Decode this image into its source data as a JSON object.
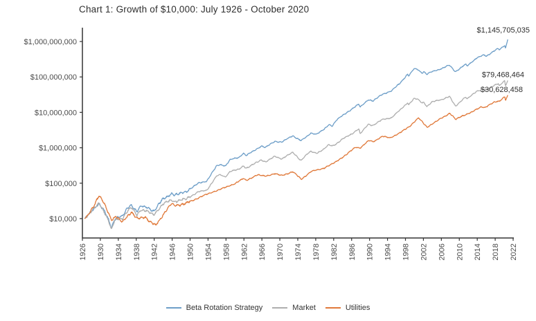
{
  "title": "Chart 1: Growth of $10,000: July 1926 - October 2020",
  "axes": {
    "x_ticks": [
      1926,
      1930,
      1934,
      1938,
      1942,
      1946,
      1950,
      1954,
      1958,
      1962,
      1966,
      1970,
      1974,
      1978,
      1982,
      1986,
      1990,
      1994,
      1998,
      2002,
      2006,
      2010,
      2014,
      2018,
      2022
    ],
    "y_tick_labels": [
      "$10,000",
      "$100,000",
      "$1,000,000",
      "$10,000,000",
      "$100,000,000",
      "$1,000,000,000"
    ],
    "y_tick_values": [
      10000,
      100000,
      1000000,
      10000000,
      100000000,
      1000000000
    ]
  },
  "chart_data": {
    "type": "line",
    "title": "Chart 1: Growth of $10,000: July 1926 - October 2020",
    "x_range": [
      1926,
      2022
    ],
    "y_scale": "log",
    "ylim": [
      3500,
      2500000000
    ],
    "grid": false,
    "legend_position": "bottom",
    "start_value": 10000,
    "start_date": "July 1926",
    "end_date": "October 2020",
    "series": [
      {
        "name": "Beta Rotation Strategy",
        "color": "#6d9ec8",
        "final_value": 1145705035,
        "final_label": "$1,145,705,035",
        "points": [
          [
            1926.5,
            10000
          ],
          [
            1927.5,
            13500
          ],
          [
            1928.9,
            21000
          ],
          [
            1929.7,
            28000
          ],
          [
            1930.9,
            16000
          ],
          [
            1931.9,
            8600
          ],
          [
            1932.45,
            5500
          ],
          [
            1933.2,
            9500
          ],
          [
            1933.9,
            11500
          ],
          [
            1934.9,
            11500
          ],
          [
            1935.9,
            18000
          ],
          [
            1936.9,
            25000
          ],
          [
            1938.2,
            16000
          ],
          [
            1938.9,
            22000
          ],
          [
            1940.4,
            21000
          ],
          [
            1941.9,
            16500
          ],
          [
            1943.9,
            35000
          ],
          [
            1945.9,
            51000
          ],
          [
            1946.6,
            46000
          ],
          [
            1948.9,
            56000
          ],
          [
            1949.9,
            68000
          ],
          [
            1951.9,
            100000
          ],
          [
            1953.7,
            115000
          ],
          [
            1955.9,
            305000
          ],
          [
            1956.7,
            335000
          ],
          [
            1957.9,
            310000
          ],
          [
            1958.9,
            455000
          ],
          [
            1960.9,
            540000
          ],
          [
            1961.9,
            700000
          ],
          [
            1962.5,
            600000
          ],
          [
            1965.9,
            1130000
          ],
          [
            1966.8,
            1020000
          ],
          [
            1968.9,
            1520000
          ],
          [
            1970.4,
            1450000
          ],
          [
            1972.9,
            2200000
          ],
          [
            1974.7,
            1600000
          ],
          [
            1975.9,
            2000000
          ],
          [
            1976.9,
            2600000
          ],
          [
            1978.2,
            2450000
          ],
          [
            1979.9,
            3300000
          ],
          [
            1980.9,
            4500000
          ],
          [
            1981.7,
            4200000
          ],
          [
            1982.6,
            6000000
          ],
          [
            1983.9,
            8000000
          ],
          [
            1985.9,
            12000000
          ],
          [
            1987.6,
            17000000
          ],
          [
            1987.9,
            14000000
          ],
          [
            1989.7,
            23000000
          ],
          [
            1990.8,
            21000000
          ],
          [
            1992.9,
            33000000
          ],
          [
            1994.9,
            40000000
          ],
          [
            1996.9,
            70000000
          ],
          [
            1998.5,
            120000000
          ],
          [
            1998.7,
            105000000
          ],
          [
            1999.9,
            170000000
          ],
          [
            2000.7,
            165000000
          ],
          [
            2001.7,
            130000000
          ],
          [
            2002.1,
            140000000
          ],
          [
            2002.75,
            118000000
          ],
          [
            2003.9,
            140000000
          ],
          [
            2005.9,
            170000000
          ],
          [
            2007.8,
            215000000
          ],
          [
            2008.9,
            150000000
          ],
          [
            2009.2,
            142000000
          ],
          [
            2010.9,
            205000000
          ],
          [
            2011.4,
            225000000
          ],
          [
            2011.8,
            205000000
          ],
          [
            2013.9,
            350000000
          ],
          [
            2015.4,
            410000000
          ],
          [
            2016.1,
            385000000
          ],
          [
            2017.9,
            570000000
          ],
          [
            2018.7,
            640000000
          ],
          [
            2018.95,
            580000000
          ],
          [
            2019.9,
            730000000
          ],
          [
            2020.13,
            780000000
          ],
          [
            2020.28,
            620000000
          ],
          [
            2020.8,
            1145705035
          ]
        ]
      },
      {
        "name": "Market",
        "color": "#aeaeae",
        "final_value": 79468464,
        "final_label": "$79,468,464",
        "points": [
          [
            1926.5,
            10000
          ],
          [
            1927.5,
            13500
          ],
          [
            1928.9,
            20500
          ],
          [
            1929.7,
            27500
          ],
          [
            1930.9,
            15500
          ],
          [
            1931.9,
            8100
          ],
          [
            1932.45,
            4700
          ],
          [
            1933.2,
            8800
          ],
          [
            1933.9,
            10200
          ],
          [
            1934.9,
            10100
          ],
          [
            1935.9,
            15200
          ],
          [
            1936.9,
            20500
          ],
          [
            1938.2,
            12800
          ],
          [
            1938.9,
            17500
          ],
          [
            1940.4,
            16000
          ],
          [
            1941.9,
            13200
          ],
          [
            1943.9,
            25000
          ],
          [
            1945.9,
            34000
          ],
          [
            1946.6,
            30500
          ],
          [
            1948.9,
            35000
          ],
          [
            1949.9,
            41500
          ],
          [
            1951.9,
            57500
          ],
          [
            1953.7,
            63000
          ],
          [
            1955.9,
            159000
          ],
          [
            1956.7,
            170000
          ],
          [
            1957.9,
            152000
          ],
          [
            1958.9,
            218000
          ],
          [
            1960.9,
            245000
          ],
          [
            1961.9,
            310000
          ],
          [
            1962.5,
            265000
          ],
          [
            1965.9,
            455000
          ],
          [
            1966.8,
            400000
          ],
          [
            1968.9,
            565000
          ],
          [
            1970.4,
            490000
          ],
          [
            1972.9,
            740000
          ],
          [
            1974.7,
            440000
          ],
          [
            1975.9,
            630000
          ],
          [
            1976.9,
            780000
          ],
          [
            1978.2,
            710000
          ],
          [
            1979.9,
            920000
          ],
          [
            1980.9,
            1220000
          ],
          [
            1981.7,
            1130000
          ],
          [
            1982.6,
            1300000
          ],
          [
            1983.9,
            1730000
          ],
          [
            1985.9,
            2420000
          ],
          [
            1987.6,
            3400000
          ],
          [
            1987.9,
            2450000
          ],
          [
            1989.7,
            4600000
          ],
          [
            1990.8,
            4300000
          ],
          [
            1992.9,
            6300000
          ],
          [
            1994.9,
            7100000
          ],
          [
            1996.9,
            11900000
          ],
          [
            1998.5,
            19000000
          ],
          [
            1998.7,
            16500000
          ],
          [
            1999.9,
            24500000
          ],
          [
            2000.7,
            23500000
          ],
          [
            2001.7,
            18500000
          ],
          [
            2002.1,
            19500000
          ],
          [
            2002.75,
            14800000
          ],
          [
            2003.9,
            19500000
          ],
          [
            2005.9,
            22800000
          ],
          [
            2007.8,
            28000000
          ],
          [
            2008.9,
            16500000
          ],
          [
            2009.2,
            14800000
          ],
          [
            2010.9,
            24500000
          ],
          [
            2011.4,
            27000000
          ],
          [
            2011.8,
            24000000
          ],
          [
            2013.9,
            40000000
          ],
          [
            2015.4,
            45500000
          ],
          [
            2016.1,
            42000000
          ],
          [
            2017.9,
            60000000
          ],
          [
            2018.7,
            66000000
          ],
          [
            2018.95,
            56500000
          ],
          [
            2019.9,
            74000000
          ],
          [
            2020.13,
            76000000
          ],
          [
            2020.28,
            54000000
          ],
          [
            2020.8,
            79468464
          ]
        ]
      },
      {
        "name": "Utilities",
        "color": "#e0793a",
        "final_value": 30628458,
        "final_label": "$30,628,458",
        "points": [
          [
            1926.5,
            10000
          ],
          [
            1927.5,
            14500
          ],
          [
            1928.8,
            26000
          ],
          [
            1929.7,
            43000
          ],
          [
            1930.9,
            27000
          ],
          [
            1931.9,
            14000
          ],
          [
            1932.5,
            9000
          ],
          [
            1933.5,
            11000
          ],
          [
            1934.9,
            8200
          ],
          [
            1935.9,
            11500
          ],
          [
            1936.9,
            14500
          ],
          [
            1938.2,
            10000
          ],
          [
            1939.9,
            11500
          ],
          [
            1941.0,
            8000
          ],
          [
            1942.3,
            6500
          ],
          [
            1943.9,
            12500
          ],
          [
            1945.9,
            26000
          ],
          [
            1946.6,
            24000
          ],
          [
            1948.9,
            26000
          ],
          [
            1949.9,
            30000
          ],
          [
            1952.9,
            44000
          ],
          [
            1955.9,
            62000
          ],
          [
            1957.9,
            76000
          ],
          [
            1959.9,
            97000
          ],
          [
            1961.9,
            135000
          ],
          [
            1962.5,
            120000
          ],
          [
            1964.9,
            170000
          ],
          [
            1966.8,
            160000
          ],
          [
            1968.9,
            185000
          ],
          [
            1970.4,
            165000
          ],
          [
            1972.9,
            210000
          ],
          [
            1974.8,
            130000
          ],
          [
            1976.9,
            210000
          ],
          [
            1979.9,
            270000
          ],
          [
            1981.9,
            360000
          ],
          [
            1984.9,
            650000
          ],
          [
            1986.9,
            1050000
          ],
          [
            1987.9,
            980000
          ],
          [
            1989.9,
            1600000
          ],
          [
            1990.8,
            1500000
          ],
          [
            1992.9,
            2100000
          ],
          [
            1994.5,
            1900000
          ],
          [
            1996.9,
            2700000
          ],
          [
            1998.9,
            4000000
          ],
          [
            2000.9,
            7000000
          ],
          [
            2002.8,
            3800000
          ],
          [
            2004.9,
            5600000
          ],
          [
            2007.9,
            9500000
          ],
          [
            2009.2,
            6300000
          ],
          [
            2010.9,
            8200000
          ],
          [
            2012.9,
            10200000
          ],
          [
            2014.9,
            14500000
          ],
          [
            2015.7,
            13800000
          ],
          [
            2017.9,
            19500000
          ],
          [
            2018.95,
            21000000
          ],
          [
            2019.9,
            26500000
          ],
          [
            2020.15,
            28500000
          ],
          [
            2020.3,
            21500000
          ],
          [
            2020.8,
            30628458
          ]
        ]
      }
    ]
  },
  "legend": {
    "items": [
      "Beta Rotation Strategy",
      "Market",
      "Utilities"
    ]
  }
}
